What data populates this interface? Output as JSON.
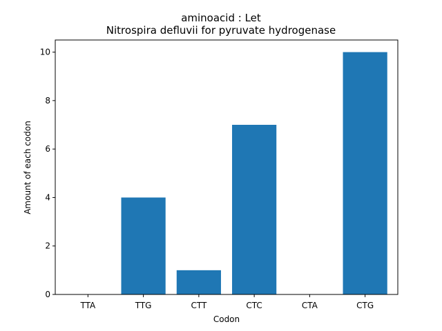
{
  "chart_data": {
    "type": "bar",
    "title": "aminoacid : Let",
    "subtitle": "Nitrospira defluvii for pyruvate hydrogenase",
    "xlabel": "Codon",
    "ylabel": "Amount of each codon",
    "categories": [
      "TTA",
      "TTG",
      "CTT",
      "CTC",
      "CTA",
      "CTG"
    ],
    "values": [
      0,
      4,
      1,
      7,
      0,
      10
    ],
    "ylim": [
      0,
      10.5
    ],
    "yticks": [
      0,
      2,
      4,
      6,
      8,
      10
    ],
    "bar_color": "#1f77b4",
    "grid": false,
    "legend": "none"
  }
}
